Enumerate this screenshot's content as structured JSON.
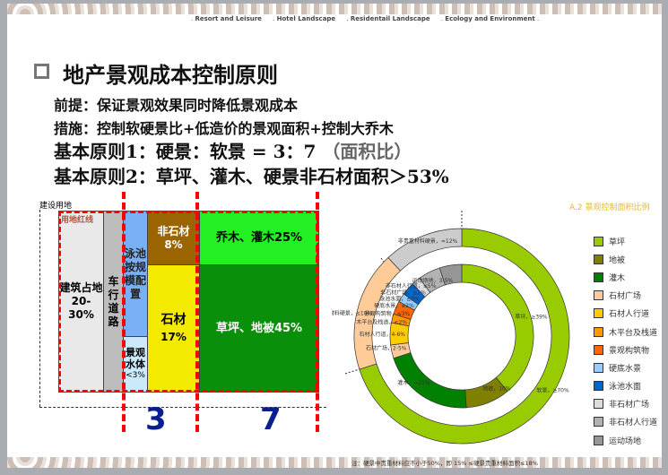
{
  "nav": [
    "Resort and Leisure",
    "Hotel Landscape",
    "Residentail Landscape",
    "Ecology and Environment"
  ],
  "title": "地产景观成本控制原则",
  "lines": {
    "premise": "前提：保证景观效果同时降低景观成本",
    "measure": "措施：控制软硬景比+低造价的景观面积+控制大乔木",
    "principle1": "基本原则1：硬景：软景 = 3：7 ",
    "principle1_note": "（面积比）",
    "principle2": "基本原则2：草坪、灌木、硬景非石材面积＞53%"
  },
  "diagram": {
    "site_label": "建设用地",
    "redline_label": "用地红线",
    "building": [
      "建筑占地",
      "20-30%"
    ],
    "road": [
      "车行",
      "道路"
    ],
    "pool": [
      "泳池",
      "按规",
      "模配",
      "置"
    ],
    "water": [
      "景观",
      "水体",
      "<3%"
    ],
    "nonstone": [
      "非石材",
      "8%"
    ],
    "stone": [
      "石材",
      "17%"
    ],
    "trees": "乔木、灌木25%",
    "lawn": "草坪、地被45%",
    "hard_ratio": "3",
    "soft_ratio": "7"
  },
  "chart_data": {
    "type": "donut",
    "title": "A.2 景观控制面积比例",
    "outer_ring": [
      {
        "label": "软景，≥70%",
        "value": 70,
        "color": "#99cc00"
      },
      {
        "label": "贵重材料硬景，≤18%",
        "value": 18,
        "color": "#ffcc99"
      },
      {
        "label": "非贵重材料硬景，≈12%",
        "value": 12,
        "color": "#cccccc"
      }
    ],
    "inner_ring": [
      {
        "label": "草坪，≥39%",
        "value": 39,
        "color": "#99cc00"
      },
      {
        "label": "地被，10%",
        "value": 10,
        "color": "#808000"
      },
      {
        "label": "灌木，≈21%",
        "value": 21,
        "color": "#008000"
      },
      {
        "label": "石材广场，2-5%",
        "value": 3,
        "color": "#ffcc99"
      },
      {
        "label": "石材人行道，4-6%",
        "value": 5,
        "color": "#ffcc00"
      },
      {
        "label": "木平台及栈道，≤2%",
        "value": 2,
        "color": "#ff9900"
      },
      {
        "label": "景观构筑物，≤3%",
        "value": 3,
        "color": "#ff6600"
      },
      {
        "label": "硬底水景，≤2%",
        "value": 2,
        "color": "#99ccff"
      },
      {
        "label": "泳池水面，≤3%",
        "value": 3,
        "color": "#0066cc"
      },
      {
        "label": "非石材广场，≤2%",
        "value": 2,
        "color": "#dddddd"
      },
      {
        "label": "非石材人行道，≤5%",
        "value": 5,
        "color": "#b2b2b2"
      },
      {
        "label": "运动场地，3-5%",
        "value": 5,
        "color": "#969696"
      }
    ],
    "legend": [
      {
        "label": "草坪",
        "color": "#99cc00"
      },
      {
        "label": "地被",
        "color": "#808000"
      },
      {
        "label": "灌木",
        "color": "#008000"
      },
      {
        "label": "石材广场",
        "color": "#ffcc99"
      },
      {
        "label": "石材人行道",
        "color": "#ffcc00"
      },
      {
        "label": "木平台及栈道",
        "color": "#ff9900"
      },
      {
        "label": "景观构筑物",
        "color": "#ff6600"
      },
      {
        "label": "硬底水景",
        "color": "#99ccff"
      },
      {
        "label": "泳池水面",
        "color": "#0066cc"
      },
      {
        "label": "非石材广场",
        "color": "#dddddd"
      },
      {
        "label": "非石材人行道",
        "color": "#b2b2b2"
      },
      {
        "label": "运动场地",
        "color": "#969696"
      }
    ],
    "legend_position": "right",
    "note": "注：硬景中贵重材料应不小于50%，即 15% ≤硬景贵重材料面积≤18%"
  }
}
